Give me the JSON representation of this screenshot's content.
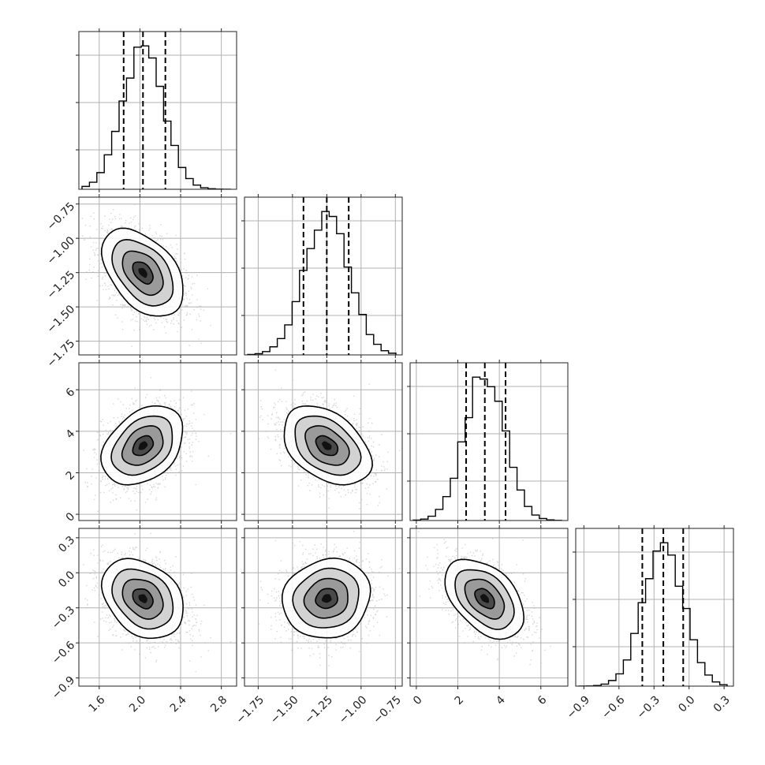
{
  "chart_data": {
    "type": "corner",
    "title": "",
    "parameters": [
      {
        "name": "",
        "range": [
          1.4,
          2.95
        ],
        "ticks": [
          1.6,
          2.0,
          2.4,
          2.8
        ],
        "tick_labels": [
          "1.6",
          "2.0",
          "2.4",
          "2.8"
        ],
        "mean": 2.03,
        "sigma": 0.2,
        "quantiles": [
          1.84,
          2.03,
          2.25
        ]
      },
      {
        "name": "",
        "range": [
          -1.85,
          -0.7
        ],
        "ticks": [
          -1.75,
          -1.5,
          -1.25,
          -1.0,
          -0.75
        ],
        "tick_labels": [
          "−1.75",
          "−1.50",
          "−1.25",
          "−1.00",
          "−0.75"
        ],
        "mean": -1.25,
        "sigma": 0.16,
        "quantiles": [
          -1.42,
          -1.25,
          -1.09
        ]
      },
      {
        "name": "",
        "range": [
          -0.3,
          7.3
        ],
        "ticks": [
          0,
          2,
          4,
          6
        ],
        "tick_labels": [
          "0",
          "2",
          "4",
          "6"
        ],
        "mean": 3.3,
        "sigma": 0.95,
        "quantiles": [
          2.4,
          3.3,
          4.3
        ]
      },
      {
        "name": "",
        "range": [
          -0.97,
          0.38
        ],
        "ticks": [
          -0.9,
          -0.6,
          -0.3,
          0.0,
          0.3
        ],
        "tick_labels": [
          "−0.9",
          "−0.6",
          "−0.3",
          "0.0",
          "0.3"
        ],
        "mean": -0.22,
        "sigma": 0.17,
        "quantiles": [
          -0.4,
          -0.22,
          -0.05
        ]
      }
    ],
    "correlations": [
      [
        1,
        -0.45,
        0.35,
        -0.3
      ],
      [
        -0.45,
        1,
        -0.4,
        0.1
      ],
      [
        0.35,
        -0.4,
        1,
        -0.45
      ],
      [
        -0.3,
        0.1,
        -0.45,
        1
      ]
    ],
    "hist_bins": 20,
    "grid": true,
    "contour_levels_sigma": [
      0.5,
      1.0,
      1.5,
      2.0
    ],
    "colors": {
      "scatter": "#b4b4b4",
      "density": "#000000",
      "lines": "#000000"
    }
  }
}
